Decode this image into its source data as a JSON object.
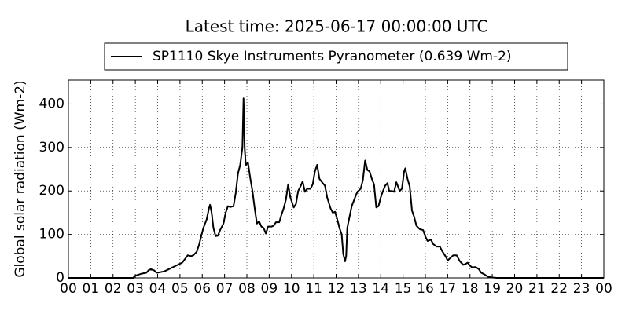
{
  "chart_data": {
    "type": "line",
    "title": "Latest time: 2025-06-17 00:00:00 UTC",
    "ylabel": "Global solar radiation (Wm-2)",
    "x": [
      0,
      2.9,
      3.0,
      3.3,
      3.5,
      3.6,
      3.7,
      3.85,
      3.95,
      4.0,
      4.3,
      4.5,
      4.7,
      4.9,
      5.1,
      5.25,
      5.35,
      5.5,
      5.6,
      5.75,
      5.85,
      5.95,
      6.05,
      6.2,
      6.3,
      6.35,
      6.42,
      6.5,
      6.6,
      6.7,
      6.8,
      6.95,
      7.05,
      7.15,
      7.25,
      7.4,
      7.5,
      7.6,
      7.7,
      7.8,
      7.85,
      7.9,
      7.95,
      8.05,
      8.15,
      8.25,
      8.35,
      8.45,
      8.55,
      8.65,
      8.75,
      8.85,
      8.95,
      9.1,
      9.2,
      9.3,
      9.45,
      9.55,
      9.65,
      9.75,
      9.85,
      9.95,
      10.1,
      10.2,
      10.3,
      10.4,
      10.5,
      10.6,
      10.7,
      10.85,
      10.95,
      11.05,
      11.15,
      11.25,
      11.4,
      11.5,
      11.6,
      11.75,
      11.85,
      11.95,
      12.05,
      12.15,
      12.25,
      12.32,
      12.4,
      12.45,
      12.5,
      12.6,
      12.7,
      12.85,
      12.95,
      13.1,
      13.2,
      13.3,
      13.4,
      13.5,
      13.6,
      13.7,
      13.8,
      13.9,
      14.0,
      14.1,
      14.2,
      14.3,
      14.38,
      14.5,
      14.6,
      14.7,
      14.85,
      14.95,
      15.05,
      15.1,
      15.2,
      15.3,
      15.4,
      15.5,
      15.6,
      15.75,
      15.9,
      16.0,
      16.1,
      16.25,
      16.35,
      16.5,
      16.65,
      16.75,
      16.9,
      17.0,
      17.1,
      17.25,
      17.4,
      17.55,
      17.7,
      17.8,
      17.9,
      18.0,
      18.1,
      18.25,
      18.4,
      18.5,
      18.65,
      18.8,
      19.0,
      19.2,
      24
    ],
    "series": [
      {
        "name": "SP1110 Skye Instruments Pyranometer (0.639 Wm-2)",
        "color": "#000000",
        "values": [
          0,
          0,
          5,
          10,
          12,
          18,
          20,
          17,
          12,
          12,
          15,
          20,
          25,
          30,
          35,
          45,
          52,
          50,
          52,
          60,
          75,
          95,
          115,
          135,
          160,
          168,
          150,
          115,
          96,
          97,
          110,
          125,
          150,
          165,
          163,
          165,
          195,
          240,
          260,
          300,
          413,
          300,
          260,
          265,
          230,
          200,
          160,
          125,
          130,
          118,
          115,
          102,
          118,
          118,
          120,
          128,
          128,
          145,
          160,
          180,
          215,
          185,
          162,
          170,
          200,
          210,
          222,
          198,
          205,
          205,
          215,
          245,
          260,
          228,
          218,
          212,
          185,
          160,
          150,
          152,
          135,
          115,
          100,
          55,
          38,
          50,
          115,
          140,
          165,
          185,
          198,
          205,
          225,
          270,
          248,
          245,
          228,
          215,
          162,
          165,
          185,
          200,
          212,
          218,
          200,
          200,
          198,
          220,
          200,
          205,
          245,
          252,
          228,
          210,
          155,
          140,
          120,
          112,
          110,
          95,
          85,
          88,
          78,
          72,
          72,
          62,
          50,
          40,
          45,
          52,
          52,
          38,
          30,
          32,
          35,
          28,
          24,
          25,
          20,
          12,
          8,
          3,
          1,
          0,
          0
        ]
      }
    ],
    "xlim": [
      0,
      24
    ],
    "xticks": [
      {
        "value": 0,
        "label": "00"
      },
      {
        "value": 1,
        "label": "01"
      },
      {
        "value": 2,
        "label": "02"
      },
      {
        "value": 3,
        "label": "03"
      },
      {
        "value": 4,
        "label": "04"
      },
      {
        "value": 5,
        "label": "05"
      },
      {
        "value": 6,
        "label": "06"
      },
      {
        "value": 7,
        "label": "07"
      },
      {
        "value": 8,
        "label": "08"
      },
      {
        "value": 9,
        "label": "09"
      },
      {
        "value": 10,
        "label": "10"
      },
      {
        "value": 11,
        "label": "11"
      },
      {
        "value": 12,
        "label": "12"
      },
      {
        "value": 13,
        "label": "13"
      },
      {
        "value": 14,
        "label": "14"
      },
      {
        "value": 15,
        "label": "15"
      },
      {
        "value": 16,
        "label": "16"
      },
      {
        "value": 17,
        "label": "17"
      },
      {
        "value": 18,
        "label": "18"
      },
      {
        "value": 19,
        "label": "19"
      },
      {
        "value": 20,
        "label": "20"
      },
      {
        "value": 21,
        "label": "21"
      },
      {
        "value": 22,
        "label": "22"
      },
      {
        "value": 23,
        "label": "23"
      },
      {
        "value": 24,
        "label": "00"
      }
    ],
    "ylim": [
      0,
      455
    ],
    "yticks": [
      0,
      100,
      200,
      300,
      400
    ],
    "grid": true,
    "legend": "top"
  }
}
